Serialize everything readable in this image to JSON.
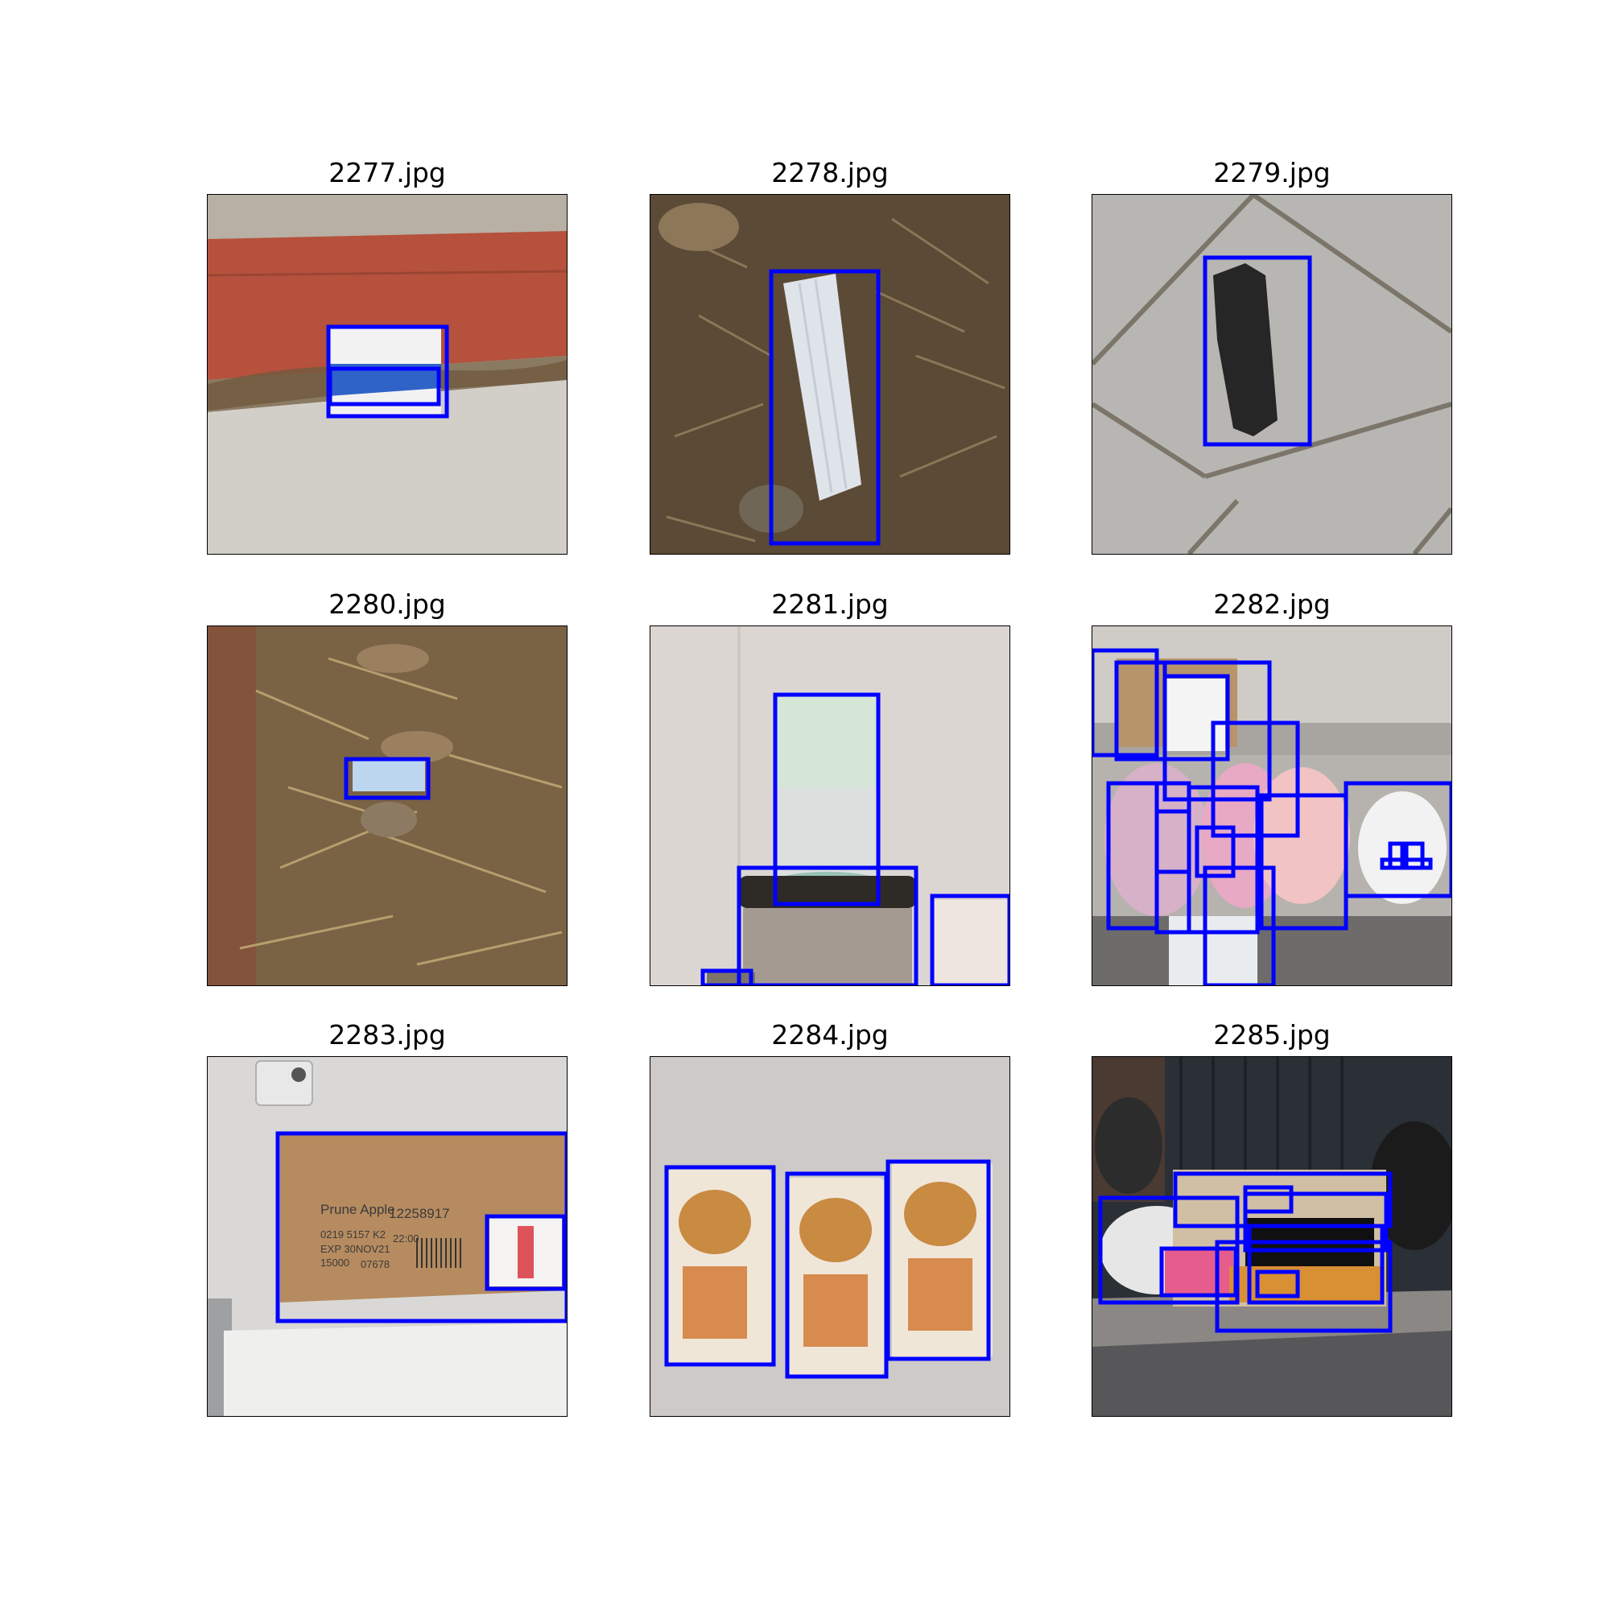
{
  "figure": {
    "panels": [
      {
        "title": "2277.jpg",
        "box_color": "#0000ff"
      },
      {
        "title": "2278.jpg",
        "box_color": "#0000ff"
      },
      {
        "title": "2279.jpg",
        "box_color": "#0000ff"
      },
      {
        "title": "2280.jpg",
        "box_color": "#0000ff"
      },
      {
        "title": "2281.jpg",
        "box_color": "#0000ff"
      },
      {
        "title": "2282.jpg",
        "box_color": "#0000ff"
      },
      {
        "title": "2283.jpg",
        "box_color": "#0000ff"
      },
      {
        "title": "2284.jpg",
        "box_color": "#0000ff"
      },
      {
        "title": "2285.jpg",
        "box_color": "#0000ff"
      }
    ],
    "box_text_2283": {
      "line1": "Prune Apple",
      "line1b": "12258917",
      "line2": "0219 5157 K2",
      "line2b": "22:00",
      "line3": "EXP 30NOV21",
      "line4": "15000",
      "line4b": "07678"
    }
  }
}
